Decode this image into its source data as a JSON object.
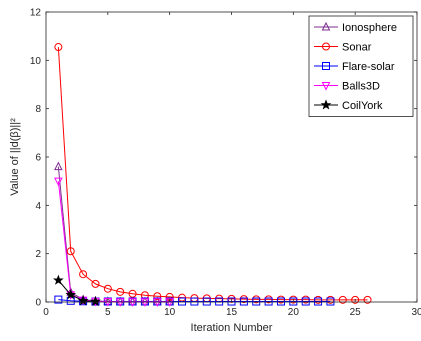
{
  "chart_data": {
    "type": "line",
    "xlabel": "Iteration Number",
    "ylabel": "Value of ||d(β)||²",
    "xlim": [
      0,
      30
    ],
    "ylim": [
      0,
      12
    ],
    "xticks": [
      "0",
      "5",
      "10",
      "15",
      "20",
      "25",
      "30"
    ],
    "yticks": [
      "0",
      "2",
      "4",
      "6",
      "8",
      "10",
      "12"
    ],
    "grid": false,
    "legend_position": "top-right",
    "series": [
      {
        "name": "Ionosphere",
        "color": "#7E2F8E",
        "marker": "triangle-up",
        "x": [
          1,
          2,
          3,
          4,
          5,
          6,
          7,
          8,
          9,
          10
        ],
        "y": [
          5.6,
          0.4,
          0.1,
          0.04,
          0.02,
          0.01,
          0.01,
          0.01,
          0.01,
          0.01
        ]
      },
      {
        "name": "Sonar",
        "color": "#FF0000",
        "marker": "circle",
        "x": [
          1,
          2,
          3,
          4,
          5,
          6,
          7,
          8,
          9,
          10,
          11,
          12,
          13,
          14,
          15,
          16,
          17,
          18,
          19,
          20,
          21,
          22,
          23,
          24,
          25,
          26
        ],
        "y": [
          10.55,
          2.1,
          1.15,
          0.75,
          0.55,
          0.42,
          0.34,
          0.28,
          0.24,
          0.21,
          0.18,
          0.16,
          0.15,
          0.14,
          0.13,
          0.12,
          0.11,
          0.11,
          0.1,
          0.1,
          0.1,
          0.09,
          0.09,
          0.09,
          0.09,
          0.09
        ]
      },
      {
        "name": "Flare-solar",
        "color": "#0000FF",
        "marker": "square",
        "x": [
          1,
          2,
          3,
          4,
          5,
          6,
          7,
          8,
          9,
          10,
          11,
          12,
          13,
          14,
          15,
          16,
          17,
          18,
          19,
          20,
          21,
          22,
          23
        ],
        "y": [
          0.1,
          0.05,
          0.03,
          0.02,
          0.02,
          0.02,
          0.02,
          0.02,
          0.02,
          0.02,
          0.02,
          0.02,
          0.02,
          0.02,
          0.02,
          0.02,
          0.02,
          0.02,
          0.02,
          0.02,
          0.02,
          0.02,
          0.02
        ]
      },
      {
        "name": "Balls3D",
        "color": "#FF00FF",
        "marker": "triangle-down",
        "x": [
          1,
          2,
          3,
          4,
          5,
          6,
          7,
          8,
          9,
          10
        ],
        "y": [
          5.0,
          0.3,
          0.08,
          0.03,
          0.02,
          0.01,
          0.01,
          0.01,
          0.01,
          0.01
        ]
      },
      {
        "name": "CoilYork",
        "color": "#000000",
        "marker": "star",
        "x": [
          1,
          2,
          3,
          4
        ],
        "y": [
          0.9,
          0.3,
          0.05,
          0.02
        ]
      }
    ]
  }
}
